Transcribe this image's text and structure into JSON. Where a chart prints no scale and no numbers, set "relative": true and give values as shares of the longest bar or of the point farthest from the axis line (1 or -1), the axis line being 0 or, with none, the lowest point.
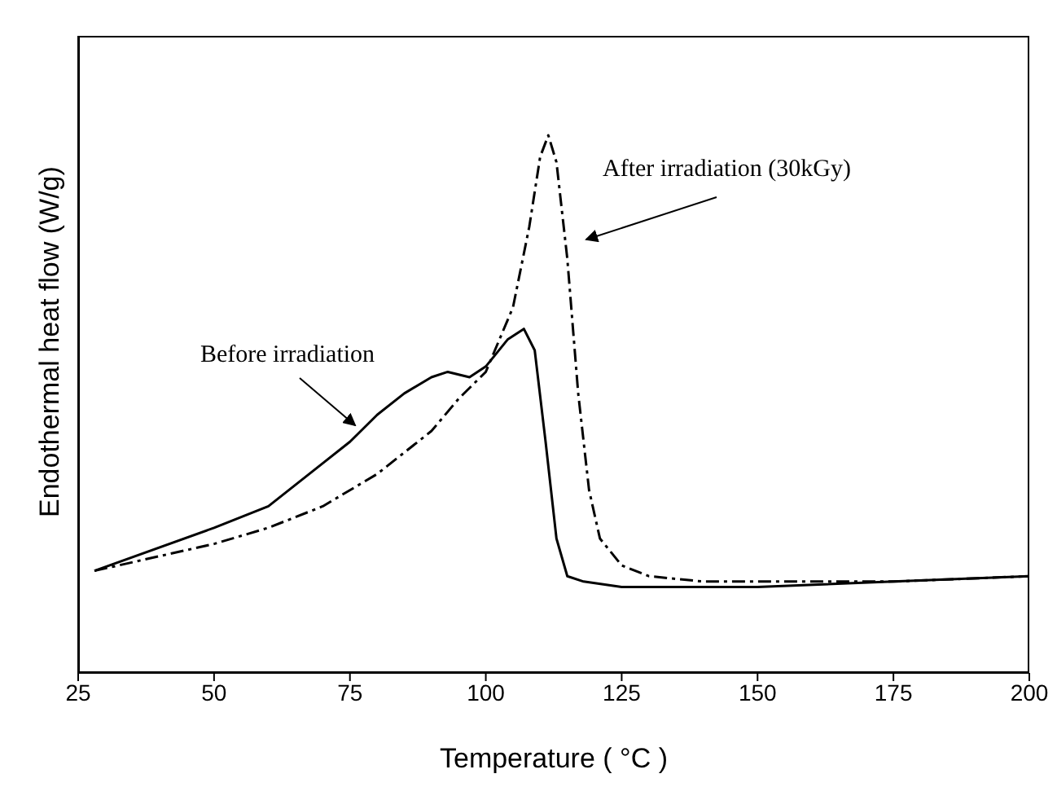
{
  "chart_data": {
    "type": "line",
    "relative": true,
    "xlabel": "Temperature ( °C )",
    "ylabel": "Endothermal heat flow (W/g)",
    "xlim": [
      25,
      200
    ],
    "xticks": [
      25,
      50,
      75,
      100,
      125,
      150,
      175,
      200
    ],
    "marker": "none",
    "series": [
      {
        "name": "Before irradiation",
        "color": "#000000",
        "line_style": "solid",
        "x": [
          28,
          50,
          60,
          70,
          75,
          80,
          85,
          90,
          93,
          97,
          100,
          104,
          107,
          109,
          111,
          113,
          115,
          118,
          125,
          150,
          175,
          200
        ],
        "values": [
          0.19,
          0.27,
          0.31,
          0.39,
          0.43,
          0.48,
          0.52,
          0.55,
          0.56,
          0.55,
          0.57,
          0.62,
          0.64,
          0.6,
          0.43,
          0.25,
          0.18,
          0.17,
          0.16,
          0.16,
          0.17,
          0.18
        ]
      },
      {
        "name": "After irradiation (30kGy)",
        "color": "#000000",
        "line_style": "dashed",
        "x": [
          28,
          50,
          60,
          70,
          80,
          90,
          95,
          100,
          105,
          108,
          110,
          111.5,
          113,
          115,
          117,
          119,
          121,
          125,
          130,
          140,
          150,
          175,
          200
        ],
        "values": [
          0.19,
          0.24,
          0.27,
          0.31,
          0.37,
          0.45,
          0.51,
          0.56,
          0.68,
          0.83,
          0.96,
          1,
          0.95,
          0.77,
          0.52,
          0.34,
          0.25,
          0.2,
          0.18,
          0.17,
          0.17,
          0.17,
          0.18
        ]
      }
    ]
  }
}
